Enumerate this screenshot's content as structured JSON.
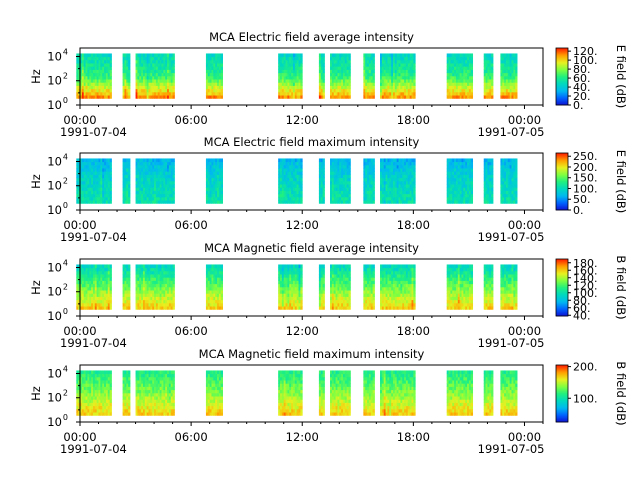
{
  "chart_data": [
    {
      "type": "heatmap",
      "title": "MCA  Electric field average intensity",
      "ylabel": "Hz",
      "y_scale": "log",
      "y_tick_labels": [
        {
          "base": "10",
          "exp": "0"
        },
        {
          "base": "10",
          "exp": "2"
        },
        {
          "base": "10",
          "exp": "4"
        }
      ],
      "x_tick_labels": [
        "00:00",
        "06:00",
        "12:00",
        "18:00",
        "00:00"
      ],
      "x_date_labels": [
        "1991-07-04",
        "1991-07-05"
      ],
      "xlim": [
        "1991-07-04 00:00",
        "1991-07-05 01:00"
      ],
      "colorbar_label": "E field (dB)",
      "colorbar_ticks": [
        "0.",
        "20.",
        "40.",
        "60.",
        "80.",
        "100.",
        "120."
      ],
      "colorbar_range": [
        0,
        127
      ],
      "colormap": [
        "#1010d0",
        "#0060ff",
        "#00b8f0",
        "#00d8c0",
        "#20f080",
        "#80ff40",
        "#e8f020",
        "#ffa000",
        "#ff2000"
      ],
      "data_blocks_hours": [
        [
          -0.2,
          1.7
        ],
        [
          2.3,
          2.7
        ],
        [
          3.0,
          5.1
        ],
        [
          6.8,
          7.7
        ],
        [
          10.7,
          12.0
        ],
        [
          12.9,
          13.2
        ],
        [
          13.5,
          14.6
        ],
        [
          15.3,
          15.9
        ],
        [
          16.2,
          18.1
        ],
        [
          19.8,
          21.2
        ],
        [
          21.8,
          22.3
        ],
        [
          22.7,
          23.6
        ]
      ],
      "intensity_profile": {
        "low_freq": 112,
        "mid_freq": 64,
        "high_freq": 48
      }
    },
    {
      "type": "heatmap",
      "title": "MCA  Electric field maximum intensity",
      "ylabel": "Hz",
      "y_scale": "log",
      "y_tick_labels": [
        {
          "base": "10",
          "exp": "0"
        },
        {
          "base": "10",
          "exp": "2"
        },
        {
          "base": "10",
          "exp": "4"
        }
      ],
      "x_tick_labels": [
        "00:00",
        "06:00",
        "12:00",
        "18:00",
        "00:00"
      ],
      "x_date_labels": [
        "1991-07-04",
        "1991-07-05"
      ],
      "xlim": [
        "1991-07-04 00:00",
        "1991-07-05 01:00"
      ],
      "colorbar_label": "E field (dB)",
      "colorbar_ticks": [
        "0.",
        "50.",
        "100.",
        "150.",
        "200.",
        "250."
      ],
      "colorbar_range": [
        0,
        265
      ],
      "colormap": [
        "#1010d0",
        "#0060ff",
        "#00b8f0",
        "#00d8c0",
        "#20f080",
        "#80ff40",
        "#e8f020",
        "#ffa000",
        "#ff2000"
      ],
      "data_blocks_hours": [
        [
          -0.2,
          1.7
        ],
        [
          2.3,
          2.7
        ],
        [
          3.0,
          5.1
        ],
        [
          6.8,
          7.7
        ],
        [
          10.7,
          12.0
        ],
        [
          12.9,
          13.2
        ],
        [
          13.5,
          14.6
        ],
        [
          15.3,
          15.9
        ],
        [
          16.2,
          18.1
        ],
        [
          19.8,
          21.2
        ],
        [
          21.8,
          22.3
        ],
        [
          22.7,
          23.6
        ]
      ],
      "intensity_profile": {
        "low_freq": 110,
        "mid_freq": 95,
        "high_freq": 72
      }
    },
    {
      "type": "heatmap",
      "title": "MCA  Magnetic field average intensity",
      "ylabel": "Hz",
      "y_scale": "log",
      "y_tick_labels": [
        {
          "base": "10",
          "exp": "0"
        },
        {
          "base": "10",
          "exp": "2"
        },
        {
          "base": "10",
          "exp": "4"
        }
      ],
      "x_tick_labels": [
        "00:00",
        "06:00",
        "12:00",
        "18:00",
        "00:00"
      ],
      "x_date_labels": [
        "1991-07-04",
        "1991-07-05"
      ],
      "xlim": [
        "1991-07-04 00:00",
        "1991-07-05 01:00"
      ],
      "colorbar_label": "B field (dB)",
      "colorbar_ticks": [
        "40.",
        "60.",
        "80.",
        "100.",
        "120.",
        "140.",
        "160.",
        "180."
      ],
      "colorbar_range": [
        38,
        190
      ],
      "colormap": [
        "#1010d0",
        "#0060ff",
        "#00b8f0",
        "#00d8c0",
        "#20f080",
        "#80ff40",
        "#e8f020",
        "#ffa000",
        "#ff2000"
      ],
      "data_blocks_hours": [
        [
          -0.2,
          1.7
        ],
        [
          2.3,
          2.7
        ],
        [
          3.0,
          5.1
        ],
        [
          6.8,
          7.7
        ],
        [
          10.7,
          12.0
        ],
        [
          12.9,
          13.2
        ],
        [
          13.5,
          14.6
        ],
        [
          15.3,
          15.9
        ],
        [
          16.2,
          18.1
        ],
        [
          19.8,
          21.2
        ],
        [
          21.8,
          22.3
        ],
        [
          22.7,
          23.6
        ]
      ],
      "intensity_profile": {
        "low_freq": 160,
        "mid_freq": 128,
        "high_freq": 95
      }
    },
    {
      "type": "heatmap",
      "title": "MCA  Magnetic field maximum intensity",
      "ylabel": "Hz",
      "y_scale": "log",
      "y_tick_labels": [
        {
          "base": "10",
          "exp": "0"
        },
        {
          "base": "10",
          "exp": "2"
        },
        {
          "base": "10",
          "exp": "4"
        }
      ],
      "x_tick_labels": [
        "00:00",
        "06:00",
        "12:00",
        "18:00",
        "00:00"
      ],
      "x_date_labels": [
        "1991-07-04",
        "1991-07-05"
      ],
      "xlim": [
        "1991-07-04 00:00",
        "1991-07-05 01:00"
      ],
      "colorbar_label": "B field (dB)",
      "colorbar_ticks": [
        "100.",
        "200."
      ],
      "colorbar_range": [
        25,
        205
      ],
      "colormap": [
        "#1010d0",
        "#0060ff",
        "#00b8f0",
        "#00d8c0",
        "#20f080",
        "#80ff40",
        "#e8f020",
        "#ffa000",
        "#ff2000"
      ],
      "data_blocks_hours": [
        [
          -0.2,
          1.7
        ],
        [
          2.3,
          2.7
        ],
        [
          3.0,
          5.1
        ],
        [
          6.8,
          7.7
        ],
        [
          10.7,
          12.0
        ],
        [
          12.9,
          13.2
        ],
        [
          13.5,
          14.6
        ],
        [
          15.3,
          15.9
        ],
        [
          16.2,
          18.1
        ],
        [
          19.8,
          21.2
        ],
        [
          21.8,
          22.3
        ],
        [
          22.7,
          23.6
        ]
      ],
      "intensity_profile": {
        "low_freq": 170,
        "mid_freq": 138,
        "high_freq": 112
      }
    }
  ]
}
